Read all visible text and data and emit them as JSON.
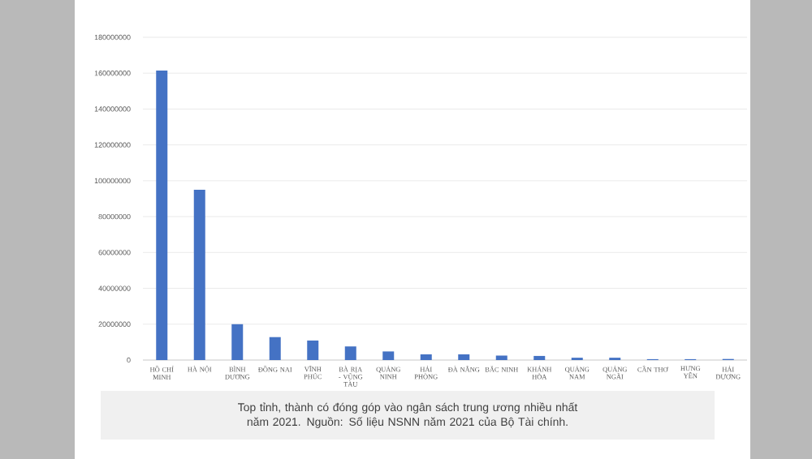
{
  "chart_data": {
    "type": "bar",
    "categories": [
      "HỒ CHÍ MINH",
      "HÀ NỘI",
      "BÌNH DƯƠNG",
      "ĐỒNG NAI",
      "VĨNH PHÚC",
      "BÀ RỊA - VŨNG TÀU",
      "QUẢNG NINH",
      "HẢI PHÒNG",
      "ĐÀ NẴNG",
      "BẮC NINH",
      "KHÁNH HÒA",
      "QUẢNG NAM",
      "QUẢNG NGÃI",
      "CẦN THƠ",
      "HƯNG YÊN",
      "HẢI DƯƠNG"
    ],
    "values": [
      161500000,
      95000000,
      20000000,
      12800000,
      10900000,
      7600000,
      4800000,
      3200000,
      3200000,
      2500000,
      2300000,
      1300000,
      1300000,
      500000,
      500000,
      600000
    ],
    "color": "#4472c4",
    "ylim": [
      0,
      180000000
    ],
    "yticks": [
      0,
      20000000,
      40000000,
      60000000,
      80000000,
      100000000,
      120000000,
      140000000,
      160000000,
      180000000
    ],
    "grid": "y",
    "annotations": [
      "Top tỉnh, thành có đóng góp vào ngân sách trung ương nhiều nhất năm 2021. Nguồn: Số liệu NSNN năm 2021 của Bộ Tài chính."
    ]
  }
}
